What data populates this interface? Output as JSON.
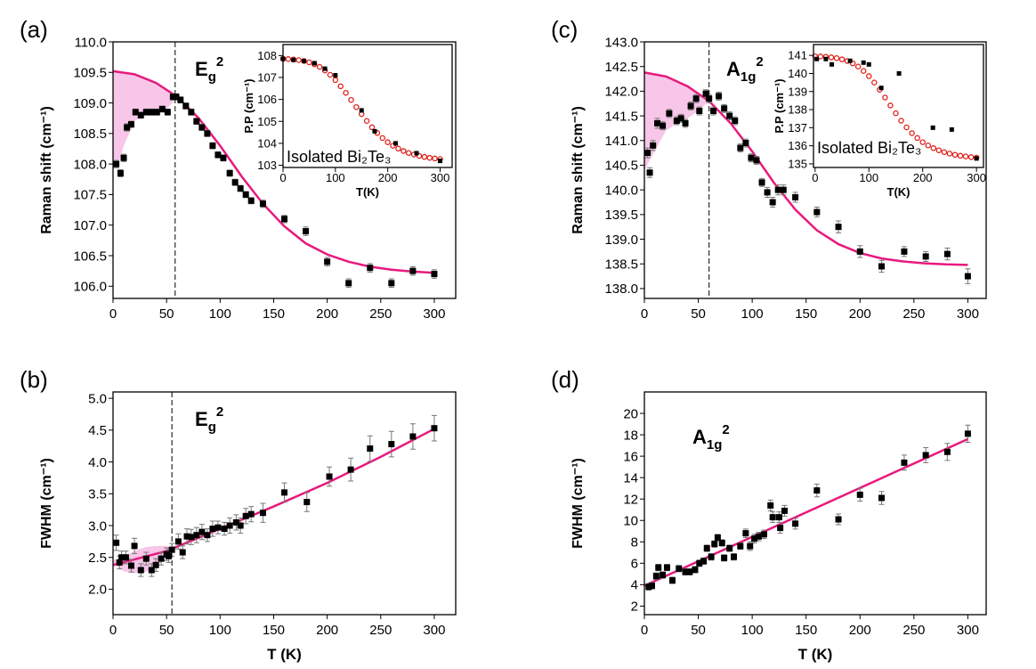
{
  "chart_data": [
    {
      "type": "scatter",
      "panel_label": "(a)",
      "ylabel": "Raman shift (cm⁻¹)",
      "annotation": {
        "base": "E",
        "sub": "g",
        "sup": "2"
      },
      "xlim": [
        0,
        320
      ],
      "ylim": [
        105.8,
        110.0
      ],
      "xticks": [
        0,
        50,
        100,
        150,
        200,
        250,
        300
      ],
      "yticks": [
        {
          "value": 106.0,
          "label": "106.0"
        },
        {
          "value": 106.5,
          "label": "106.5"
        },
        {
          "value": 107.0,
          "label": "107.0"
        },
        {
          "value": 107.5,
          "label": "107.5"
        },
        {
          "value": 108.0,
          "label": "108.0"
        },
        {
          "value": 108.5,
          "label": "108.5"
        },
        {
          "value": 109.0,
          "label": "109.0"
        },
        {
          "value": 109.5,
          "label": "109.5"
        },
        {
          "value": 110.0,
          "label": "110.0"
        }
      ],
      "vline": 58,
      "points": {
        "color": "#000000",
        "marker": "square",
        "x": [
          3,
          7,
          10,
          13,
          17,
          21,
          26,
          31,
          36,
          41,
          46,
          51,
          56,
          59,
          63,
          68,
          73,
          78,
          83,
          88,
          93,
          98,
          103,
          109,
          114,
          119,
          124,
          129,
          140,
          160,
          180,
          200,
          220,
          240,
          260,
          280,
          300
        ],
        "values": [
          108.0,
          107.85,
          108.1,
          108.6,
          108.65,
          108.85,
          108.8,
          108.85,
          108.85,
          108.85,
          108.9,
          108.85,
          109.1,
          109.1,
          109.05,
          108.95,
          108.85,
          108.7,
          108.6,
          108.5,
          108.3,
          108.15,
          108.1,
          107.85,
          107.7,
          107.6,
          107.5,
          107.4,
          107.35,
          107.1,
          106.9,
          106.4,
          106.05,
          106.3,
          106.05,
          106.25,
          106.2
        ],
        "errors": [
          0.06,
          0.06,
          0.06,
          0.06,
          0.05,
          0.05,
          0.05,
          0.05,
          0.05,
          0.05,
          0.05,
          0.05,
          0.05,
          0.05,
          0.05,
          0.05,
          0.05,
          0.05,
          0.05,
          0.05,
          0.05,
          0.05,
          0.05,
          0.05,
          0.05,
          0.05,
          0.05,
          0.05,
          0.06,
          0.06,
          0.07,
          0.07,
          0.07,
          0.07,
          0.07,
          0.07,
          0.07
        ]
      },
      "fit": {
        "color": "#e8197d",
        "style": "line",
        "x": [
          0,
          20,
          40,
          60,
          80,
          100,
          120,
          140,
          160,
          180,
          200,
          220,
          240,
          260,
          280,
          300
        ],
        "values": [
          109.52,
          109.47,
          109.33,
          109.1,
          108.75,
          108.3,
          107.8,
          107.35,
          106.98,
          106.7,
          106.52,
          106.4,
          106.32,
          106.27,
          106.24,
          106.22
        ]
      },
      "band": {
        "color": "#f7c6e8",
        "x": [
          0,
          5,
          10,
          20,
          30,
          40,
          50,
          58
        ],
        "lower": [
          108.1,
          108.0,
          108.3,
          108.7,
          108.82,
          108.85,
          108.9,
          109.05
        ],
        "upper": [
          109.52,
          109.51,
          109.5,
          109.47,
          109.42,
          109.33,
          109.22,
          109.12
        ]
      }
    },
    {
      "type": "scatter",
      "inset": true,
      "ylabel": "P.P (cm⁻¹)",
      "xlabel": "T(K)",
      "text": "Isolated Bi₂Te₃",
      "xlim": [
        0,
        323
      ],
      "ylim": [
        102.9,
        108.5
      ],
      "xticks": [
        0,
        100,
        200,
        300
      ],
      "yticks": [
        103,
        104,
        105,
        106,
        107,
        108
      ],
      "points": {
        "color": "#000000",
        "marker": "square",
        "x": [
          0,
          20,
          40,
          60,
          80,
          100,
          150,
          175,
          215,
          255,
          300
        ],
        "values": [
          107.85,
          107.8,
          107.75,
          107.65,
          107.4,
          107.1,
          105.5,
          104.55,
          104.0,
          103.55,
          103.2
        ]
      },
      "fit": {
        "color": "#e0201b",
        "style": "circles",
        "x": [
          0,
          10,
          20,
          30,
          40,
          50,
          60,
          70,
          80,
          90,
          100,
          110,
          120,
          130,
          140,
          150,
          160,
          170,
          180,
          190,
          200,
          210,
          220,
          230,
          240,
          250,
          260,
          270,
          280,
          290,
          300
        ],
        "values": [
          107.85,
          107.84,
          107.82,
          107.79,
          107.75,
          107.69,
          107.6,
          107.48,
          107.32,
          107.12,
          106.88,
          106.6,
          106.3,
          105.98,
          105.65,
          105.33,
          105.02,
          104.73,
          104.47,
          104.24,
          104.05,
          103.89,
          103.76,
          103.65,
          103.56,
          103.49,
          103.43,
          103.38,
          103.34,
          103.31,
          103.28
        ]
      }
    },
    {
      "type": "scatter",
      "panel_label": "(b)",
      "ylabel": "FWHM (cm⁻¹)",
      "xlabel": "T (K)",
      "annotation": {
        "base": "E",
        "sub": "g",
        "sup": "2"
      },
      "xlim": [
        0,
        320
      ],
      "ylim": [
        1.6,
        5.1
      ],
      "xticks": [
        0,
        50,
        100,
        150,
        200,
        250,
        300
      ],
      "yticks": [
        {
          "value": 2.0,
          "label": "2.0"
        },
        2.5,
        {
          "value": 3.0,
          "label": "3.0"
        },
        3.5,
        {
          "value": 4.0,
          "label": "4.0"
        },
        4.5,
        {
          "value": 5.0,
          "label": "5.0"
        }
      ],
      "vline": 55,
      "points": {
        "color": "#000000",
        "marker": "square",
        "x": [
          3,
          6,
          8,
          12,
          17,
          20,
          26,
          31,
          36,
          40,
          45,
          50,
          52,
          55,
          61,
          65,
          69,
          73,
          78,
          83,
          88,
          93,
          98,
          104,
          109,
          115,
          119,
          124,
          129,
          140,
          160,
          181,
          202,
          222,
          240,
          260,
          280,
          300
        ],
        "values": [
          2.73,
          2.42,
          2.5,
          2.5,
          2.37,
          2.68,
          2.3,
          2.48,
          2.3,
          2.38,
          2.48,
          2.55,
          2.52,
          2.62,
          2.75,
          2.58,
          2.83,
          2.82,
          2.85,
          2.9,
          2.85,
          2.95,
          2.97,
          2.95,
          3.0,
          3.05,
          3.0,
          3.15,
          3.18,
          3.2,
          3.52,
          3.37,
          3.77,
          3.88,
          4.21,
          4.28,
          4.4,
          4.53
        ],
        "errors": [
          0.12,
          0.1,
          0.1,
          0.1,
          0.1,
          0.12,
          0.1,
          0.1,
          0.1,
          0.1,
          0.1,
          0.1,
          0.1,
          0.1,
          0.12,
          0.1,
          0.12,
          0.12,
          0.12,
          0.12,
          0.1,
          0.12,
          0.1,
          0.1,
          0.12,
          0.12,
          0.12,
          0.12,
          0.12,
          0.15,
          0.15,
          0.15,
          0.15,
          0.18,
          0.2,
          0.2,
          0.2,
          0.2
        ]
      },
      "fit": {
        "color": "#e8197d",
        "style": "line",
        "x": [
          0,
          50,
          100,
          150,
          200,
          250,
          300
        ],
        "values": [
          2.38,
          2.6,
          2.95,
          3.3,
          3.67,
          4.08,
          4.52
        ]
      },
      "band": {
        "color": "#f7c6e8",
        "x": [
          0,
          10,
          20,
          30,
          40,
          50,
          55
        ],
        "lower": [
          2.4,
          2.28,
          2.25,
          2.27,
          2.35,
          2.5,
          2.62
        ],
        "upper": [
          2.45,
          2.52,
          2.6,
          2.66,
          2.68,
          2.68,
          2.65
        ]
      }
    },
    {
      "type": "scatter",
      "panel_label": "(c)",
      "ylabel": "Raman shift (cm⁻¹)",
      "annotation": {
        "base": "A",
        "sub": "1g",
        "sup": "2"
      },
      "xlim": [
        0,
        317
      ],
      "ylim": [
        137.8,
        143.0
      ],
      "xticks": [
        0,
        50,
        100,
        150,
        200,
        250,
        300
      ],
      "yticks": [
        {
          "value": 138.0,
          "label": "138.0"
        },
        138.5,
        {
          "value": 139.0,
          "label": "139.0"
        },
        139.5,
        {
          "value": 140.0,
          "label": "140.0"
        },
        140.5,
        {
          "value": 141.0,
          "label": "141.0"
        },
        141.5,
        {
          "value": 142.0,
          "label": "142.0"
        },
        142.5,
        {
          "value": 143.0,
          "label": "143.0"
        }
      ],
      "vline": 60,
      "points": {
        "color": "#000000",
        "marker": "square",
        "x": [
          3,
          5,
          8,
          12,
          17,
          23,
          30,
          34,
          38,
          43,
          48,
          51,
          57,
          60,
          64,
          69,
          74,
          79,
          84,
          89,
          94,
          99,
          104,
          109,
          114,
          119,
          124,
          129,
          140,
          160,
          180,
          200,
          220,
          241,
          261,
          281,
          300
        ],
        "values": [
          140.75,
          140.35,
          140.9,
          141.35,
          141.3,
          141.55,
          141.4,
          141.45,
          141.35,
          141.7,
          141.85,
          141.6,
          141.95,
          141.85,
          141.6,
          141.9,
          141.65,
          141.5,
          141.4,
          140.85,
          140.95,
          140.65,
          140.6,
          140.15,
          139.95,
          139.75,
          140.0,
          140.0,
          139.85,
          139.55,
          139.25,
          138.75,
          138.45,
          138.75,
          138.65,
          138.7,
          138.25
        ],
        "errors": [
          0.1,
          0.1,
          0.1,
          0.1,
          0.08,
          0.08,
          0.08,
          0.08,
          0.08,
          0.08,
          0.08,
          0.08,
          0.08,
          0.08,
          0.08,
          0.08,
          0.08,
          0.08,
          0.08,
          0.08,
          0.08,
          0.08,
          0.08,
          0.08,
          0.1,
          0.1,
          0.1,
          0.1,
          0.1,
          0.1,
          0.12,
          0.12,
          0.12,
          0.1,
          0.1,
          0.12,
          0.15
        ]
      },
      "fit": {
        "color": "#e8197d",
        "style": "line",
        "x": [
          0,
          20,
          40,
          60,
          80,
          100,
          120,
          140,
          160,
          180,
          200,
          220,
          240,
          260,
          280,
          300
        ],
        "values": [
          142.38,
          142.3,
          142.1,
          141.8,
          141.35,
          140.78,
          140.15,
          139.6,
          139.18,
          138.9,
          138.72,
          138.61,
          138.55,
          138.51,
          138.49,
          138.48
        ]
      },
      "band": {
        "color": "#f7c6e8",
        "x": [
          0,
          10,
          20,
          30,
          40,
          50,
          60
        ],
        "lower": [
          140.4,
          140.8,
          141.2,
          141.35,
          141.45,
          141.6,
          141.8
        ],
        "upper": [
          142.38,
          142.35,
          142.3,
          142.22,
          142.1,
          141.97,
          141.8
        ]
      }
    },
    {
      "type": "scatter",
      "inset": true,
      "ylabel": "P.P (cm⁻¹)",
      "xlabel": "T(K)",
      "text": "Isolated Bi₂Te₃",
      "xlim": [
        -3,
        313
      ],
      "ylim": [
        134.8,
        141.6
      ],
      "xticks": [
        0,
        100,
        200,
        300
      ],
      "yticks": [
        135,
        136,
        137,
        138,
        139,
        140,
        141
      ],
      "points": {
        "color": "#000000",
        "marker": "square",
        "x": [
          3,
          20,
          31,
          65,
          90,
          100,
          123,
          156,
          219,
          254,
          300
        ],
        "values": [
          140.8,
          140.8,
          140.5,
          140.7,
          140.6,
          140.5,
          139.2,
          140.0,
          137.0,
          136.9,
          135.3
        ]
      },
      "fit": {
        "color": "#e0201b",
        "style": "circles",
        "x": [
          0,
          10,
          20,
          30,
          40,
          50,
          60,
          70,
          80,
          90,
          100,
          110,
          120,
          130,
          140,
          150,
          160,
          170,
          180,
          190,
          200,
          210,
          220,
          230,
          240,
          250,
          260,
          270,
          280,
          290,
          300
        ],
        "values": [
          140.95,
          140.94,
          140.92,
          140.89,
          140.85,
          140.78,
          140.69,
          140.56,
          140.38,
          140.14,
          139.85,
          139.5,
          139.1,
          138.67,
          138.23,
          137.8,
          137.39,
          137.02,
          136.7,
          136.43,
          136.2,
          136.02,
          135.87,
          135.75,
          135.65,
          135.57,
          135.5,
          135.45,
          135.41,
          135.37,
          135.34
        ]
      }
    },
    {
      "type": "scatter",
      "panel_label": "(d)",
      "ylabel": "FWHM (cm⁻¹)",
      "xlabel": "T (K)",
      "annotation": {
        "base": "A",
        "sub": "1g",
        "sup": "2"
      },
      "xlim": [
        0,
        317
      ],
      "ylim": [
        1.2,
        22.0
      ],
      "xticks": [
        0,
        50,
        100,
        150,
        200,
        250,
        300
      ],
      "yticks": [
        2,
        4,
        6,
        8,
        10,
        12,
        14,
        16,
        18,
        20
      ],
      "points": {
        "color": "#000000",
        "marker": "square",
        "x": [
          4,
          7,
          11,
          13,
          17,
          21,
          26,
          32,
          38,
          42,
          47,
          51,
          55,
          58,
          62,
          65,
          68,
          72,
          74,
          79,
          83,
          89,
          94,
          98,
          102,
          106,
          111,
          117,
          119,
          125,
          126,
          130,
          140,
          160,
          180,
          200,
          220,
          241,
          261,
          281,
          300
        ],
        "values": [
          3.8,
          3.9,
          4.8,
          5.6,
          4.9,
          5.6,
          4.4,
          5.5,
          5.2,
          5.2,
          5.4,
          6.0,
          6.2,
          7.4,
          6.6,
          7.8,
          8.4,
          7.9,
          6.5,
          7.4,
          6.6,
          7.6,
          8.8,
          7.6,
          8.3,
          8.5,
          8.7,
          11.4,
          10.3,
          10.3,
          9.3,
          10.9,
          9.7,
          12.8,
          10.1,
          12.4,
          12.1,
          15.4,
          16.1,
          16.4,
          18.1
        ],
        "errors": [
          0.3,
          0.3,
          0.3,
          0.3,
          0.3,
          0.3,
          0.3,
          0.3,
          0.3,
          0.3,
          0.3,
          0.3,
          0.3,
          0.3,
          0.3,
          0.3,
          0.3,
          0.3,
          0.3,
          0.3,
          0.3,
          0.3,
          0.4,
          0.4,
          0.4,
          0.4,
          0.4,
          0.5,
          0.5,
          0.5,
          0.5,
          0.5,
          0.5,
          0.6,
          0.5,
          0.6,
          0.6,
          0.7,
          0.7,
          0.8,
          0.8
        ]
      },
      "fit": {
        "color": "#e8197d",
        "style": "line",
        "x": [
          0,
          300
        ],
        "values": [
          3.9,
          17.6
        ]
      }
    }
  ]
}
